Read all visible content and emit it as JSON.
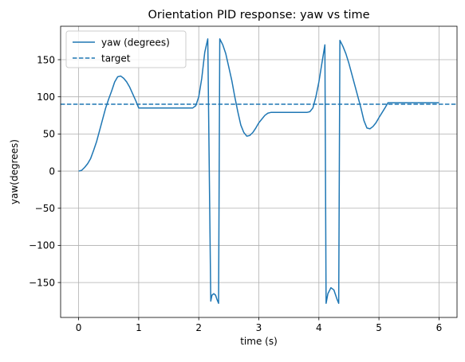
{
  "chart_data": {
    "type": "line",
    "title": "Orientation PID response: yaw vs time",
    "xlabel": "time (s)",
    "ylabel": "yaw(degrees)",
    "xlim": [
      -0.3,
      6.3
    ],
    "ylim": [
      -197,
      195
    ],
    "x_ticks": [
      0,
      1,
      2,
      3,
      4,
      5,
      6
    ],
    "y_ticks": [
      -150,
      -100,
      -50,
      0,
      50,
      100,
      150
    ],
    "x_tick_labels": [
      "0",
      "1",
      "2",
      "3",
      "4",
      "5",
      "6"
    ],
    "y_tick_labels": [
      "−150",
      "−100",
      "−50",
      "0",
      "50",
      "100",
      "150"
    ],
    "grid": true,
    "legend_position": "upper-left",
    "series": [
      {
        "name": "yaw (degrees)",
        "style": "solid",
        "color": "#1f77b4",
        "points": [
          [
            0.0,
            0
          ],
          [
            0.05,
            1
          ],
          [
            0.1,
            5
          ],
          [
            0.15,
            10
          ],
          [
            0.2,
            17
          ],
          [
            0.25,
            28
          ],
          [
            0.3,
            40
          ],
          [
            0.35,
            55
          ],
          [
            0.4,
            70
          ],
          [
            0.45,
            85
          ],
          [
            0.5,
            97
          ],
          [
            0.55,
            108
          ],
          [
            0.6,
            120
          ],
          [
            0.65,
            127
          ],
          [
            0.7,
            128
          ],
          [
            0.75,
            125
          ],
          [
            0.8,
            120
          ],
          [
            0.85,
            113
          ],
          [
            0.9,
            104
          ],
          [
            0.95,
            95
          ],
          [
            1.0,
            85
          ],
          [
            1.3,
            85
          ],
          [
            1.9,
            85
          ],
          [
            1.95,
            88
          ],
          [
            2.0,
            100
          ],
          [
            2.05,
            125
          ],
          [
            2.1,
            160
          ],
          [
            2.15,
            178
          ],
          [
            2.2,
            -175
          ],
          [
            2.22,
            -167
          ],
          [
            2.25,
            -165
          ],
          [
            2.28,
            -167
          ],
          [
            2.3,
            -172
          ],
          [
            2.33,
            -178
          ],
          [
            2.35,
            178
          ],
          [
            2.4,
            170
          ],
          [
            2.45,
            158
          ],
          [
            2.5,
            140
          ],
          [
            2.55,
            122
          ],
          [
            2.6,
            100
          ],
          [
            2.65,
            80
          ],
          [
            2.7,
            62
          ],
          [
            2.75,
            52
          ],
          [
            2.8,
            47
          ],
          [
            2.85,
            48
          ],
          [
            2.9,
            52
          ],
          [
            2.95,
            58
          ],
          [
            3.0,
            65
          ],
          [
            3.1,
            75
          ],
          [
            3.15,
            78
          ],
          [
            3.2,
            79
          ],
          [
            3.5,
            79
          ],
          [
            3.8,
            79
          ],
          [
            3.85,
            80
          ],
          [
            3.9,
            85
          ],
          [
            3.95,
            100
          ],
          [
            4.0,
            120
          ],
          [
            4.05,
            145
          ],
          [
            4.1,
            170
          ],
          [
            4.12,
            -178
          ],
          [
            4.15,
            -165
          ],
          [
            4.2,
            -157
          ],
          [
            4.25,
            -160
          ],
          [
            4.3,
            -172
          ],
          [
            4.33,
            -178
          ],
          [
            4.35,
            176
          ],
          [
            4.4,
            168
          ],
          [
            4.45,
            158
          ],
          [
            4.5,
            145
          ],
          [
            4.55,
            130
          ],
          [
            4.6,
            115
          ],
          [
            4.65,
            100
          ],
          [
            4.7,
            85
          ],
          [
            4.75,
            68
          ],
          [
            4.8,
            58
          ],
          [
            4.85,
            57
          ],
          [
            4.9,
            60
          ],
          [
            4.95,
            65
          ],
          [
            5.0,
            72
          ],
          [
            5.1,
            85
          ],
          [
            5.15,
            92
          ],
          [
            5.5,
            92
          ],
          [
            6.0,
            92
          ]
        ]
      },
      {
        "name": "target",
        "style": "dashed",
        "color": "#1f77b4",
        "points": [
          [
            -0.3,
            90
          ],
          [
            6.3,
            90
          ]
        ]
      }
    ]
  }
}
